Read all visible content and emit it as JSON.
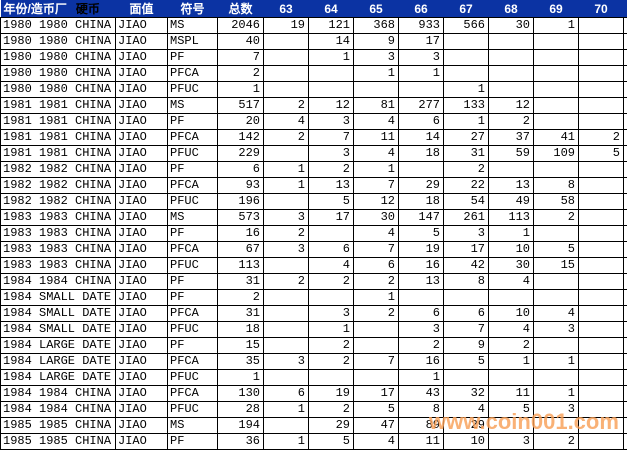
{
  "table": {
    "header": {
      "year_mint": "年份/造币厂",
      "coin": "硬币",
      "denomination": "面值",
      "symbol": "符号",
      "total": "总数",
      "grades": [
        "63",
        "64",
        "65",
        "66",
        "67",
        "68",
        "69",
        "70"
      ]
    },
    "rows": [
      [
        "1980 1980 CHINA",
        "JIAO",
        "MS",
        "2046",
        "19",
        "121",
        "368",
        "933",
        "566",
        "30",
        "1",
        ""
      ],
      [
        "1980 1980 CHINA",
        "JIAO",
        "MSPL",
        "40",
        "",
        "14",
        "9",
        "17",
        "",
        "",
        "",
        ""
      ],
      [
        "1980 1980 CHINA",
        "JIAO",
        "PF",
        "7",
        "",
        "1",
        "3",
        "3",
        "",
        "",
        "",
        ""
      ],
      [
        "1980 1980 CHINA",
        "JIAO",
        "PFCA",
        "2",
        "",
        "",
        "1",
        "1",
        "",
        "",
        "",
        ""
      ],
      [
        "1980 1980 CHINA",
        "JIAO",
        "PFUC",
        "1",
        "",
        "",
        "",
        "",
        "1",
        "",
        "",
        ""
      ],
      [
        "1981 1981 CHINA",
        "JIAO",
        "MS",
        "517",
        "2",
        "12",
        "81",
        "277",
        "133",
        "12",
        "",
        ""
      ],
      [
        "1981 1981 CHINA",
        "JIAO",
        "PF",
        "20",
        "4",
        "3",
        "4",
        "6",
        "1",
        "2",
        "",
        ""
      ],
      [
        "1981 1981 CHINA",
        "JIAO",
        "PFCA",
        "142",
        "2",
        "7",
        "11",
        "14",
        "27",
        "37",
        "41",
        "2"
      ],
      [
        "1981 1981 CHINA",
        "JIAO",
        "PFUC",
        "229",
        "",
        "3",
        "4",
        "18",
        "31",
        "59",
        "109",
        "5"
      ],
      [
        "1982 1982 CHINA",
        "JIAO",
        "PF",
        "6",
        "1",
        "2",
        "1",
        "",
        "2",
        "",
        "",
        ""
      ],
      [
        "1982 1982 CHINA",
        "JIAO",
        "PFCA",
        "93",
        "1",
        "13",
        "7",
        "29",
        "22",
        "13",
        "8",
        ""
      ],
      [
        "1982 1982 CHINA",
        "JIAO",
        "PFUC",
        "196",
        "",
        "5",
        "12",
        "18",
        "54",
        "49",
        "58",
        ""
      ],
      [
        "1983 1983 CHINA",
        "JIAO",
        "MS",
        "573",
        "3",
        "17",
        "30",
        "147",
        "261",
        "113",
        "2",
        ""
      ],
      [
        "1983 1983 CHINA",
        "JIAO",
        "PF",
        "16",
        "2",
        "",
        "4",
        "5",
        "3",
        "1",
        "",
        ""
      ],
      [
        "1983 1983 CHINA",
        "JIAO",
        "PFCA",
        "67",
        "3",
        "6",
        "7",
        "19",
        "17",
        "10",
        "5",
        ""
      ],
      [
        "1983 1983 CHINA",
        "JIAO",
        "PFUC",
        "113",
        "",
        "4",
        "6",
        "16",
        "42",
        "30",
        "15",
        ""
      ],
      [
        "1984 1984 CHINA",
        "JIAO",
        "PF",
        "31",
        "2",
        "2",
        "2",
        "13",
        "8",
        "4",
        "",
        ""
      ],
      [
        "1984 SMALL DATE",
        "JIAO",
        "PF",
        "2",
        "",
        "",
        "1",
        "",
        "",
        "",
        "",
        ""
      ],
      [
        "1984 SMALL DATE",
        "JIAO",
        "PFCA",
        "31",
        "",
        "3",
        "2",
        "6",
        "6",
        "10",
        "4",
        ""
      ],
      [
        "1984 SMALL DATE",
        "JIAO",
        "PFUC",
        "18",
        "",
        "1",
        "",
        "3",
        "7",
        "4",
        "3",
        ""
      ],
      [
        "1984 LARGE DATE",
        "JIAO",
        "PF",
        "15",
        "",
        "2",
        "",
        "2",
        "9",
        "2",
        "",
        ""
      ],
      [
        "1984 LARGE DATE",
        "JIAO",
        "PFCA",
        "35",
        "3",
        "2",
        "7",
        "16",
        "5",
        "1",
        "1",
        ""
      ],
      [
        "1984 LARGE DATE",
        "JIAO",
        "PFUC",
        "1",
        "",
        "",
        "",
        "1",
        "",
        "",
        "",
        ""
      ],
      [
        "1984 1984 CHINA",
        "JIAO",
        "PFCA",
        "130",
        "6",
        "19",
        "17",
        "43",
        "32",
        "11",
        "1",
        ""
      ],
      [
        "1984 1984 CHINA",
        "JIAO",
        "PFUC",
        "28",
        "1",
        "2",
        "5",
        "8",
        "4",
        "5",
        "3",
        ""
      ],
      [
        "1985 1985 CHINA",
        "JIAO",
        "MS",
        "194",
        "",
        "29",
        "47",
        "89",
        "29",
        "",
        "",
        ""
      ],
      [
        "1985 1985 CHINA",
        "JIAO",
        "PF",
        "36",
        "1",
        "5",
        "4",
        "11",
        "10",
        "3",
        "2",
        ""
      ]
    ]
  },
  "watermark": {
    "text": "www.coin001.com"
  },
  "colors": {
    "header_bg": "#0B33A3",
    "header_text": "#FFFFFF",
    "coin_label_text": "#000000",
    "grid_line": "#000000",
    "watermark": "rgba(248, 160, 88, 0.82)"
  }
}
